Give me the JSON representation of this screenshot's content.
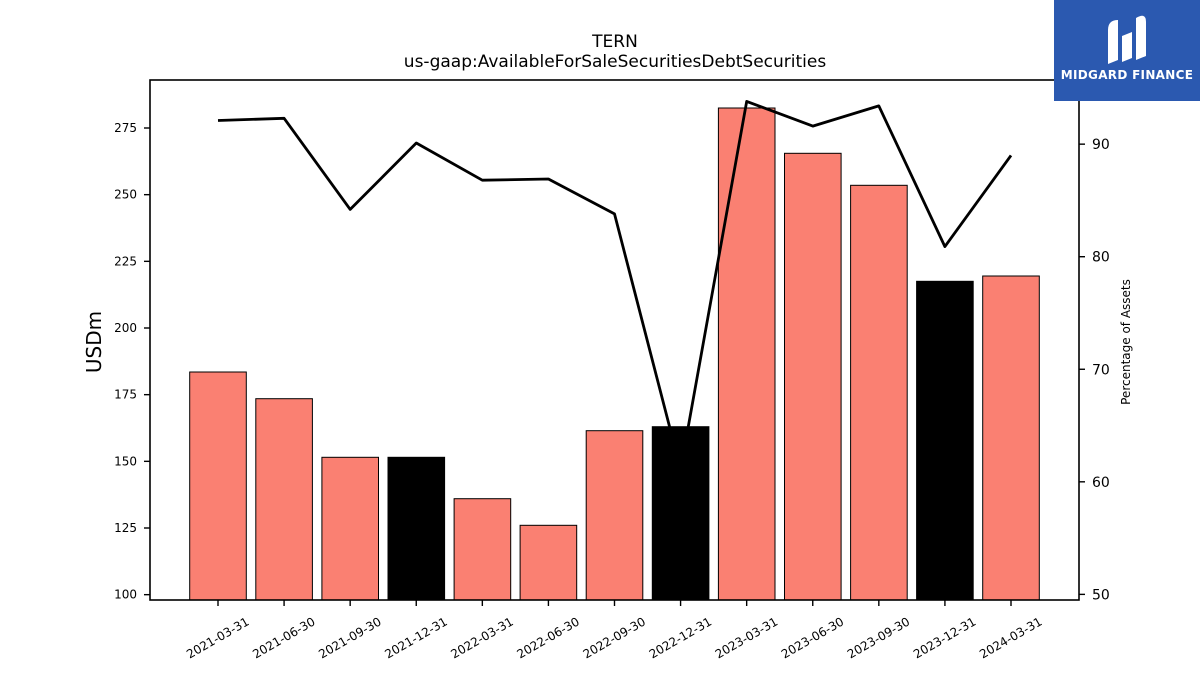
{
  "brand": {
    "name": "MIDGARD FINANCE",
    "color": "#2b59b0",
    "logo_icon": "midgard-logo-icon"
  },
  "chart_data": {
    "type": "bar",
    "title": "TERN",
    "subtitle": "us-gaap:AvailableForSaleSecuritiesDebtSecurities",
    "categories": [
      "2021-03-31",
      "2021-06-30",
      "2021-09-30",
      "2021-12-31",
      "2022-03-31",
      "2022-06-30",
      "2022-09-30",
      "2022-12-31",
      "2023-03-31",
      "2023-06-30",
      "2023-09-30",
      "2023-12-31",
      "2024-03-31"
    ],
    "series": [
      {
        "axis": "left",
        "type": "bar",
        "values": [
          183.5,
          173.5,
          151.5,
          151.5,
          136,
          126,
          161.5,
          163,
          282.5,
          265.5,
          253.5,
          217.5,
          219.5
        ],
        "colors": [
          "#fa8072",
          "#fa8072",
          "#fa8072",
          "#000000",
          "#fa8072",
          "#fa8072",
          "#fa8072",
          "#000000",
          "#fa8072",
          "#fa8072",
          "#fa8072",
          "#000000",
          "#fa8072"
        ]
      },
      {
        "axis": "right",
        "type": "line",
        "color": "#000000",
        "values": [
          92.1,
          92.3,
          84.2,
          90.1,
          86.8,
          86.9,
          83.8,
          61.1,
          93.8,
          91.6,
          93.4,
          80.9,
          89.0
        ]
      }
    ],
    "ylabel": "USDm",
    "ylim": [
      98,
      293
    ],
    "yticks": [
      100,
      125,
      150,
      175,
      200,
      225,
      250,
      275
    ],
    "y2label": "Percentage of Assets",
    "y2lim": [
      49.5,
      95.7
    ],
    "y2ticks": [
      50,
      60,
      70,
      80,
      90
    ],
    "grid": false,
    "legend": "none"
  }
}
